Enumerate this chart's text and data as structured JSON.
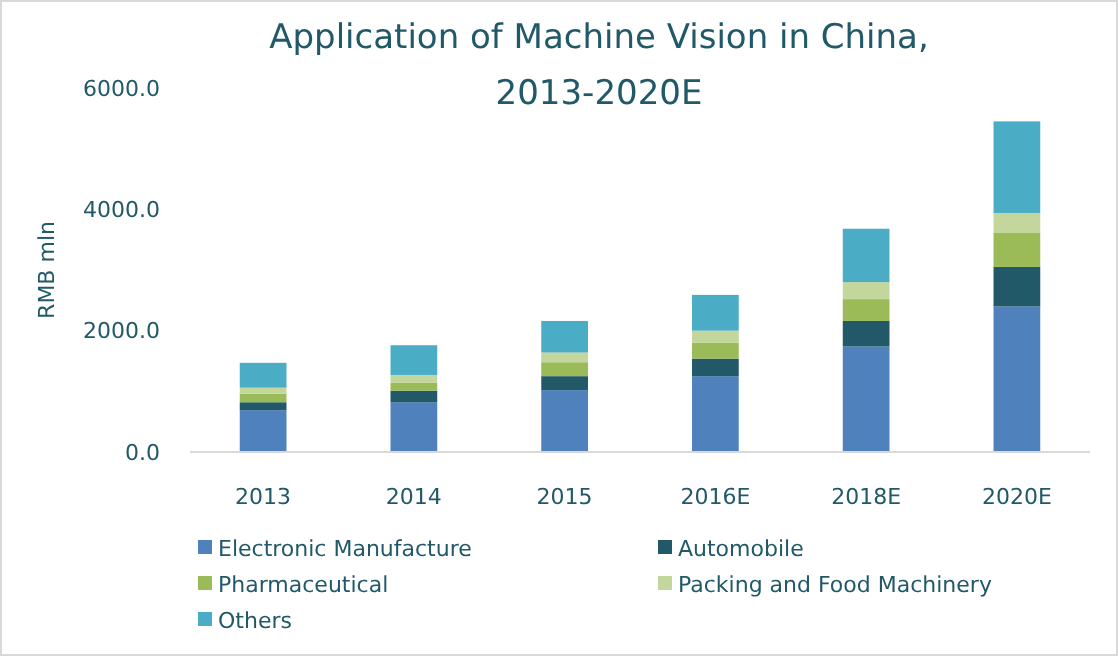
{
  "chart_data": {
    "type": "bar",
    "stacked": true,
    "title": "Application of Machine Vision in China,\n2013-2020E",
    "ylabel": "RMB mln",
    "categories": [
      "2013",
      "2014",
      "2015",
      "2016E",
      "2018E",
      "2020E"
    ],
    "series": [
      {
        "name": "Electronic Manufacture",
        "color": "#4f81bd",
        "values": [
          690,
          820,
          1020,
          1250,
          1740,
          2400
        ]
      },
      {
        "name": "Automobile",
        "color": "#215968",
        "values": [
          130,
          190,
          230,
          290,
          420,
          650
        ]
      },
      {
        "name": "Pharmaceutical",
        "color": "#9bbb59",
        "values": [
          140,
          130,
          230,
          260,
          360,
          560
        ]
      },
      {
        "name": "Packing and Food Machinery",
        "color": "#c3d69b",
        "values": [
          100,
          130,
          160,
          200,
          280,
          330
        ]
      },
      {
        "name": "Others",
        "color": "#4bacc6",
        "values": [
          410,
          490,
          520,
          590,
          880,
          1510
        ]
      }
    ],
    "ylim": [
      0,
      6000
    ],
    "yticks": [
      {
        "value": 0,
        "label": "0.0"
      },
      {
        "value": 2000,
        "label": "2000.0"
      },
      {
        "value": 4000,
        "label": "4000.0"
      },
      {
        "value": 6000,
        "label": "6000.0"
      }
    ],
    "grid": false,
    "legend": "bottom"
  }
}
